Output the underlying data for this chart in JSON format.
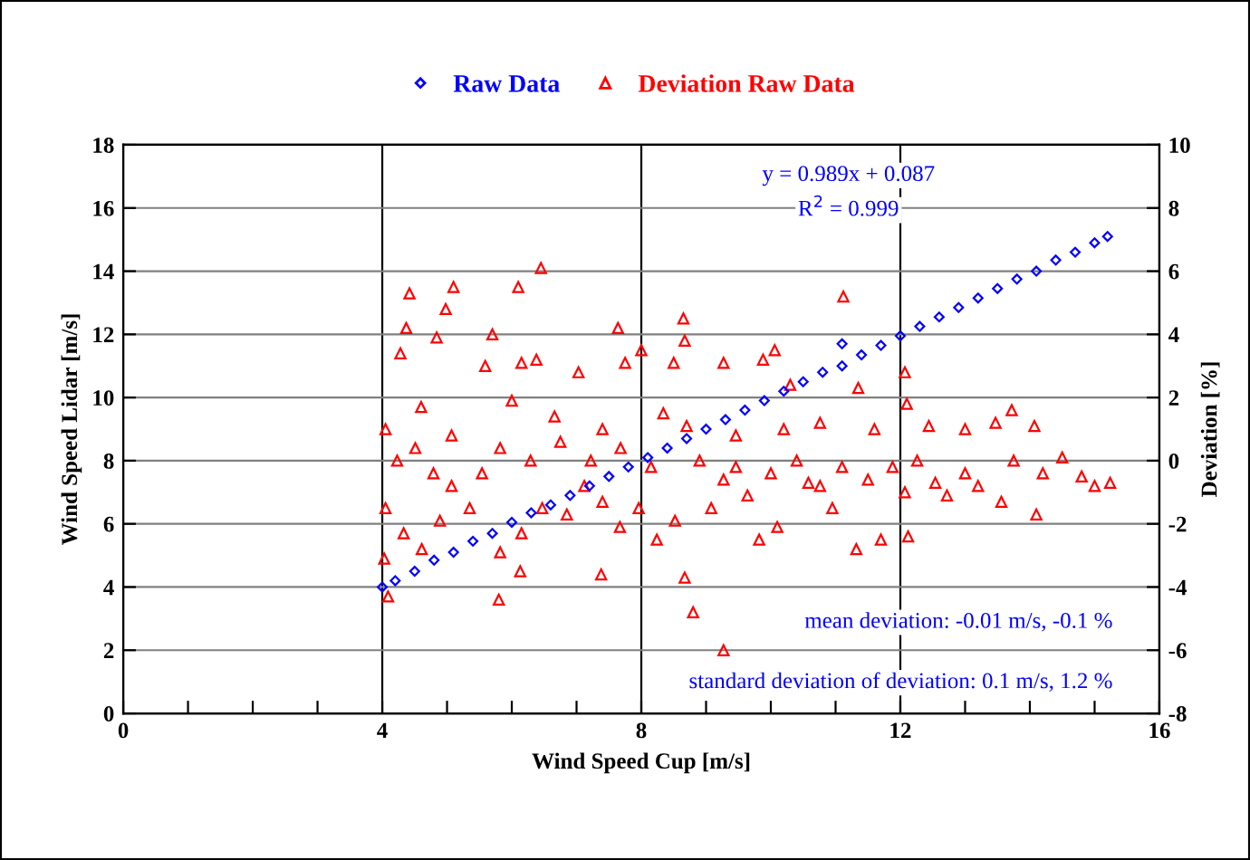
{
  "chart_data": {
    "type": "scatter",
    "xlabel": "Wind Speed Cup [m/s]",
    "ylabel": "Wind Speed Lidar [m/s]",
    "y2label": "Deviation [%]",
    "xlim": [
      0,
      16
    ],
    "xticks": [
      0,
      {
        "value": 1,
        "label": null
      },
      {
        "value": 2,
        "label": null
      },
      {
        "value": 3,
        "label": null
      },
      4,
      {
        "value": 5,
        "label": null
      },
      {
        "value": 6,
        "label": null
      },
      {
        "value": 7,
        "label": null
      },
      8,
      {
        "value": 9,
        "label": null
      },
      {
        "value": 10,
        "label": null
      },
      {
        "value": 11,
        "label": null
      },
      12,
      {
        "value": 13,
        "label": null
      },
      {
        "value": 14,
        "label": null
      },
      {
        "value": 15,
        "label": null
      },
      16
    ],
    "ylim": [
      0,
      18
    ],
    "yticks": [
      0,
      2,
      4,
      6,
      8,
      10,
      12,
      14,
      16,
      18
    ],
    "y2lim": [
      -8,
      10
    ],
    "y2ticks": [
      -8,
      -6,
      -4,
      -2,
      0,
      2,
      4,
      6,
      8,
      10
    ],
    "grid": true,
    "legend": "top",
    "series": [
      {
        "name": "Raw Data",
        "color": "#0000ff",
        "marker": "diamond",
        "axis": "y",
        "x": [
          4.0,
          4.2,
          4.5,
          4.8,
          5.1,
          5.4,
          5.7,
          6.0,
          6.3,
          6.6,
          6.9,
          7.2,
          7.5,
          7.8,
          8.1,
          8.4,
          8.7,
          9.0,
          9.3,
          9.6,
          9.9,
          10.2,
          10.5,
          10.8,
          11.1,
          11.1,
          11.4,
          11.7,
          12.0,
          12.3,
          12.6,
          12.9,
          13.2,
          13.5,
          13.8,
          14.1,
          14.4,
          14.7,
          15.0,
          15.2
        ],
        "values": [
          4.0,
          4.2,
          4.5,
          4.85,
          5.1,
          5.45,
          5.7,
          6.05,
          6.35,
          6.6,
          6.9,
          7.2,
          7.5,
          7.8,
          8.1,
          8.4,
          8.7,
          9.0,
          9.3,
          9.6,
          9.9,
          10.2,
          10.5,
          10.8,
          11.0,
          11.7,
          11.35,
          11.65,
          11.95,
          12.25,
          12.55,
          12.85,
          13.15,
          13.45,
          13.75,
          14.0,
          14.35,
          14.6,
          14.9,
          15.1
        ]
      },
      {
        "name": "Deviation Raw Data",
        "color": "#ff0000",
        "marker": "triangle",
        "axis": "y2",
        "x": [
          6.45,
          4.42,
          5.1,
          6.1,
          4.98,
          4.37,
          4.84,
          5.7,
          7.64,
          8.65,
          8.67,
          11.12,
          8.0,
          4.28,
          5.59,
          6.15,
          6.38,
          7.03,
          7.75,
          8.5,
          9.27,
          9.88,
          10.06,
          10.3,
          11.35,
          12.07,
          12.1,
          13.72,
          14.07,
          4.05,
          4.6,
          5.07,
          6.0,
          6.66,
          7.4,
          8.34,
          8.7,
          9.46,
          10.2,
          10.76,
          11.6,
          12.44,
          13.0,
          13.47,
          14.5,
          14.8,
          15.24,
          15.0,
          14.1,
          14.2,
          13.56,
          13.0,
          12.54,
          12.07,
          11.7,
          11.32,
          12.12,
          10.95,
          10.58,
          10.1,
          9.82,
          9.64,
          9.27,
          9.08,
          8.8,
          8.67,
          9.27,
          8.52,
          8.24,
          7.96,
          7.67,
          7.4,
          7.38,
          7.12,
          6.85,
          6.47,
          6.15,
          6.13,
          5.82,
          5.8,
          5.54,
          5.35,
          5.07,
          4.89,
          4.61,
          4.33,
          4.05,
          4.03,
          4.09,
          4.23,
          4.51,
          4.79,
          5.82,
          6.29,
          6.75,
          7.22,
          7.68,
          8.15,
          8.9,
          9.46,
          10.0,
          10.4,
          10.76,
          11.1,
          11.5,
          11.88,
          12.26,
          12.72,
          13.2,
          13.75
        ],
        "values": [
          6.1,
          5.3,
          5.5,
          5.5,
          4.8,
          4.2,
          3.9,
          4.0,
          4.2,
          4.5,
          3.8,
          5.2,
          3.5,
          3.4,
          3.0,
          3.1,
          3.2,
          2.8,
          3.1,
          3.1,
          3.1,
          3.2,
          3.5,
          2.4,
          2.3,
          2.8,
          1.8,
          1.6,
          1.1,
          1.0,
          1.7,
          0.8,
          1.9,
          1.4,
          1.0,
          1.5,
          1.1,
          0.8,
          1.0,
          1.2,
          1.0,
          1.1,
          1.0,
          1.2,
          0.1,
          -0.5,
          -0.7,
          -0.8,
          -1.7,
          -0.4,
          -1.3,
          -0.4,
          -0.7,
          -1.0,
          -2.5,
          -2.8,
          -2.4,
          -1.5,
          -0.7,
          -2.1,
          -2.5,
          -1.1,
          -0.6,
          -1.5,
          -4.8,
          -3.7,
          -6.0,
          -1.9,
          -2.5,
          -1.5,
          -2.1,
          -1.3,
          -3.6,
          -0.8,
          -1.7,
          -1.5,
          -2.3,
          -3.5,
          -2.9,
          -4.4,
          -0.4,
          -1.5,
          -0.8,
          -1.9,
          -2.8,
          -2.3,
          -1.5,
          -3.1,
          -4.3,
          0.0,
          0.4,
          -0.4,
          0.4,
          0.0,
          0.6,
          0.0,
          0.4,
          -0.2,
          0.0,
          -0.2,
          -0.4,
          0.0,
          -0.8,
          -0.2,
          -0.6,
          -0.2,
          0.0,
          -1.1,
          -0.8,
          0.0
        ]
      }
    ],
    "annotations": [
      "y = 0.989x + 0.087",
      "R$^{2}$ = 0.999",
      "mean deviation: -0.01 m/s, -0.1 %",
      "standard deviation of deviation: 0.1 m/s, 1.2 %"
    ]
  }
}
